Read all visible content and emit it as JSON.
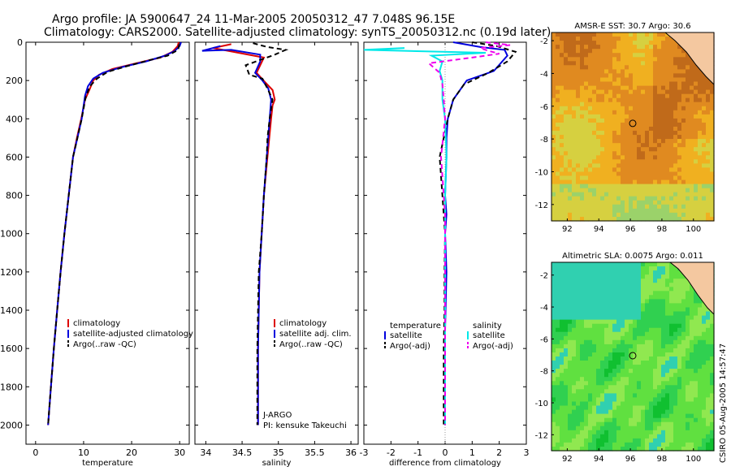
{
  "header": {
    "line1": "Argo profile: JA 5900647_24 11-Mar-2005 20050312_47 7.048S 96.15E",
    "line2": "Climatology: CARS2000. Satellite-adjusted climatology: synTS_20050312.nc (0.19d later)"
  },
  "side_label": "CSIRO 05-Aug-2005 14:57:47",
  "colors": {
    "climatology": "#dd0000",
    "satellite": "#0000dd",
    "argo": "#000000",
    "salinity_sat": "#00e8e8",
    "salinity_argo": "#ee00ee"
  },
  "chart_data": [
    {
      "id": "temperature",
      "type": "line",
      "xlabel": "temperature",
      "ylabel": "",
      "xlim": [
        -2,
        32
      ],
      "ylim": [
        2100,
        0
      ],
      "xticks": [
        0,
        10,
        20,
        30
      ],
      "xtick_labels": [
        "0",
        "10",
        "20",
        "30"
      ],
      "yticks": [
        0,
        200,
        400,
        600,
        800,
        1000,
        1200,
        1400,
        1600,
        1800,
        2000
      ],
      "ytick_labels": [
        "0",
        "200",
        "400",
        "600",
        "800",
        "1000",
        "1200",
        "1400",
        "1600",
        "1800",
        "2000"
      ],
      "legend": {
        "position": "lower-right",
        "entries": [
          {
            "label": "climatology",
            "color": "#dd0000",
            "dash": false
          },
          {
            "label": "satellite-adjusted climatology",
            "color": "#0000dd",
            "dash": false
          },
          {
            "label": "Argo(..raw -QC)",
            "color": "#000000",
            "dash": true
          }
        ]
      },
      "series": [
        {
          "key": "climatology",
          "color": "#dd0000",
          "dash": false,
          "points": [
            [
              29.8,
              0
            ],
            [
              29.6,
              20
            ],
            [
              28.5,
              50
            ],
            [
              26,
              80
            ],
            [
              21,
              110
            ],
            [
              16,
              140
            ],
            [
              13.2,
              170
            ],
            [
              12,
              200
            ],
            [
              11.2,
              250
            ],
            [
              10.3,
              300
            ],
            [
              9.5,
              400
            ],
            [
              8.6,
              500
            ],
            [
              7.8,
              600
            ],
            [
              6.9,
              800
            ],
            [
              6,
              1000
            ],
            [
              5.2,
              1200
            ],
            [
              4.5,
              1400
            ],
            [
              3.8,
              1600
            ],
            [
              3.2,
              1800
            ],
            [
              2.6,
              2000
            ]
          ]
        },
        {
          "key": "satellite",
          "color": "#0000dd",
          "dash": false,
          "points": [
            [
              30.3,
              0
            ],
            [
              30,
              20
            ],
            [
              29,
              45
            ],
            [
              27,
              70
            ],
            [
              23,
              100
            ],
            [
              18,
              130
            ],
            [
              14,
              160
            ],
            [
              12,
              190
            ],
            [
              10.9,
              230
            ],
            [
              10.3,
              280
            ],
            [
              9.6,
              400
            ],
            [
              8.7,
              500
            ],
            [
              7.8,
              600
            ],
            [
              6.9,
              800
            ],
            [
              6,
              1000
            ],
            [
              5.2,
              1200
            ],
            [
              4.5,
              1400
            ],
            [
              3.8,
              1600
            ],
            [
              3.2,
              1800
            ],
            [
              2.6,
              2000
            ]
          ]
        },
        {
          "key": "argo",
          "color": "#000000",
          "dash": true,
          "points": [
            [
              29.9,
              10
            ],
            [
              29.7,
              40
            ],
            [
              27.5,
              70
            ],
            [
              23.5,
              95
            ],
            [
              19,
              125
            ],
            [
              15,
              155
            ],
            [
              12.8,
              190
            ],
            [
              11.3,
              230
            ],
            [
              10.4,
              290
            ],
            [
              9.6,
              400
            ],
            [
              8.7,
              500
            ],
            [
              7.8,
              600
            ],
            [
              6.9,
              800
            ],
            [
              6,
              1000
            ],
            [
              5.2,
              1200
            ],
            [
              4.5,
              1400
            ],
            [
              3.8,
              1600
            ],
            [
              3.2,
              1800
            ],
            [
              2.6,
              2000
            ]
          ]
        }
      ]
    },
    {
      "id": "salinity",
      "type": "line",
      "xlabel": "salinity",
      "ylabel": "",
      "xlim": [
        33.85,
        36.1
      ],
      "ylim": [
        2100,
        0
      ],
      "xticks": [
        34,
        34.5,
        35,
        35.5,
        36
      ],
      "xtick_labels": [
        "34",
        "34.5",
        "35",
        "35.5",
        "36"
      ],
      "yticks": [
        0,
        200,
        400,
        600,
        800,
        1000,
        1200,
        1400,
        1600,
        1800,
        2000
      ],
      "legend": {
        "position": "lower-right",
        "entries": [
          {
            "label": "climatology",
            "color": "#dd0000",
            "dash": false
          },
          {
            "label": "satellite adj. clim.",
            "color": "#0000dd",
            "dash": false
          },
          {
            "label": "Argo(..raw -QC)",
            "color": "#000000",
            "dash": true
          }
        ]
      },
      "annotations": [
        "J-ARGO",
        "PI: kensuke Takeuchi"
      ],
      "series": [
        {
          "key": "climatology",
          "color": "#dd0000",
          "dash": false,
          "points": [
            [
              34.35,
              10
            ],
            [
              34.1,
              30
            ],
            [
              34.45,
              55
            ],
            [
              34.8,
              80
            ],
            [
              34.75,
              120
            ],
            [
              34.7,
              160
            ],
            [
              34.82,
              210
            ],
            [
              34.92,
              250
            ],
            [
              34.95,
              300
            ],
            [
              34.92,
              330
            ],
            [
              34.9,
              400
            ],
            [
              34.85,
              600
            ],
            [
              34.8,
              800
            ],
            [
              34.77,
              1000
            ],
            [
              34.74,
              1200
            ],
            [
              34.73,
              1400
            ],
            [
              34.72,
              1600
            ],
            [
              34.72,
              1800
            ],
            [
              34.72,
              2000
            ]
          ]
        },
        {
          "key": "satellite",
          "color": "#0000dd",
          "dash": false,
          "points": [
            [
              34.2,
              20
            ],
            [
              33.95,
              45
            ],
            [
              34.35,
              40
            ],
            [
              34.75,
              65
            ],
            [
              34.75,
              100
            ],
            [
              34.68,
              160
            ],
            [
              34.78,
              200
            ],
            [
              34.86,
              240
            ],
            [
              34.9,
              300
            ],
            [
              34.88,
              400
            ],
            [
              34.84,
              600
            ],
            [
              34.8,
              800
            ],
            [
              34.77,
              1000
            ],
            [
              34.74,
              1200
            ],
            [
              34.73,
              1400
            ],
            [
              34.72,
              1600
            ],
            [
              34.72,
              1800
            ],
            [
              34.72,
              2000
            ]
          ]
        },
        {
          "key": "argo",
          "color": "#000000",
          "dash": true,
          "points": [
            [
              34.65,
              5
            ],
            [
              34.85,
              25
            ],
            [
              35.1,
              40
            ],
            [
              34.95,
              65
            ],
            [
              34.55,
              120
            ],
            [
              34.6,
              170
            ],
            [
              34.78,
              190
            ],
            [
              34.86,
              250
            ],
            [
              34.92,
              300
            ],
            [
              34.88,
              400
            ],
            [
              34.85,
              500
            ],
            [
              34.84,
              600
            ],
            [
              34.8,
              800
            ],
            [
              34.77,
              1000
            ],
            [
              34.73,
              1200
            ],
            [
              34.72,
              1400
            ],
            [
              34.71,
              1600
            ],
            [
              34.71,
              1800
            ],
            [
              34.71,
              2000
            ]
          ]
        }
      ]
    },
    {
      "id": "difference",
      "type": "line",
      "xlabel": "difference from climatology",
      "ylabel": "",
      "xlim": [
        -3,
        3
      ],
      "ylim": [
        2100,
        0
      ],
      "xticks": [
        -3,
        -2,
        -1,
        0,
        1,
        2,
        3
      ],
      "xtick_labels": [
        "-3",
        "-2",
        "-1",
        "0",
        "1",
        "2",
        "3"
      ],
      "yticks": [
        0,
        200,
        400,
        600,
        800,
        1000,
        1200,
        1400,
        1600,
        1800,
        2000
      ],
      "legend": {
        "position": "lower-center",
        "headers": [
          "temperature",
          "salinity"
        ],
        "entries": [
          {
            "label": "satellite",
            "color": "#0000dd",
            "dash": false,
            "group": "temperature"
          },
          {
            "label": "Argo(-adj)",
            "color": "#000000",
            "dash": true,
            "group": "temperature"
          },
          {
            "label": "satellite",
            "color": "#00e8e8",
            "dash": false,
            "group": "salinity"
          },
          {
            "label": "Argo(-adj)",
            "color": "#ee00ee",
            "dash": true,
            "group": "salinity"
          }
        ]
      },
      "series": [
        {
          "key": "temp_satellite",
          "color": "#0000dd",
          "dash": false,
          "points": [
            [
              0.3,
              0
            ],
            [
              1.3,
              25
            ],
            [
              2.2,
              40
            ],
            [
              2.3,
              70
            ],
            [
              1.8,
              150
            ],
            [
              0.8,
              200
            ],
            [
              0.3,
              300
            ],
            [
              0.1,
              400
            ],
            [
              0.05,
              500
            ],
            [
              0.05,
              600
            ],
            [
              0,
              800
            ],
            [
              0.05,
              900
            ],
            [
              0,
              1000
            ],
            [
              0.05,
              1200
            ],
            [
              0,
              1500
            ],
            [
              0,
              2000
            ]
          ]
        },
        {
          "key": "temp_argo",
          "color": "#000000",
          "dash": true,
          "points": [
            [
              1.0,
              0
            ],
            [
              1.9,
              20
            ],
            [
              2.6,
              50
            ],
            [
              2.3,
              100
            ],
            [
              1.6,
              160
            ],
            [
              0.7,
              220
            ],
            [
              0.3,
              300
            ],
            [
              0.1,
              400
            ],
            [
              -0.05,
              500
            ],
            [
              -0.2,
              600
            ],
            [
              -0.1,
              800
            ],
            [
              -0.05,
              900
            ],
            [
              0,
              1000
            ],
            [
              -0.02,
              1200
            ],
            [
              -0.02,
              1400
            ],
            [
              -0.05,
              1600
            ],
            [
              -0.05,
              1800
            ],
            [
              -0.05,
              2000
            ]
          ]
        },
        {
          "key": "sal_satellite",
          "color": "#00e8e8",
          "dash": false,
          "points": [
            [
              -1.5,
              30
            ],
            [
              -3,
              40
            ],
            [
              1.5,
              55
            ],
            [
              -0.5,
              70
            ],
            [
              -0.1,
              100
            ],
            [
              -0.2,
              150
            ],
            [
              -0.1,
              200
            ],
            [
              -0.1,
              300
            ],
            [
              0,
              400
            ],
            [
              0.05,
              600
            ],
            [
              0,
              800
            ],
            [
              0,
              1000
            ],
            [
              0,
              1200
            ],
            [
              0,
              1500
            ],
            [
              0,
              2000
            ]
          ]
        },
        {
          "key": "sal_argo",
          "color": "#ee00ee",
          "dash": true,
          "points": [
            [
              1.5,
              0
            ],
            [
              2.4,
              15
            ],
            [
              1.3,
              30
            ],
            [
              1.6,
              45
            ],
            [
              2.0,
              60
            ],
            [
              1.0,
              80
            ],
            [
              -0.6,
              110
            ],
            [
              -0.2,
              160
            ],
            [
              -0.1,
              220
            ],
            [
              -0.05,
              300
            ],
            [
              0,
              400
            ],
            [
              -0.15,
              600
            ],
            [
              -0.1,
              700
            ],
            [
              -0.05,
              800
            ],
            [
              0,
              900
            ],
            [
              0,
              1000
            ],
            [
              0,
              1200
            ],
            [
              0,
              1400
            ],
            [
              0,
              2000
            ]
          ]
        }
      ]
    },
    {
      "id": "sst_map",
      "type": "heatmap",
      "title": "AMSR-E SST: 30.7 Argo: 30.6",
      "xlim": [
        91,
        101.3
      ],
      "ylim": [
        -13,
        -1.5
      ],
      "xticks": [
        92,
        94,
        96,
        98,
        100
      ],
      "xtick_labels": [
        "92",
        "94",
        "96",
        "98",
        "100"
      ],
      "yticks": [
        -2,
        -4,
        -6,
        -8,
        -10,
        -12
      ],
      "ytick_labels": [
        "-2",
        "-4",
        "-6",
        "-8",
        "-10",
        "-12"
      ],
      "argo_position": [
        96.15,
        -7.048
      ],
      "colormap": [
        "#9bd26a",
        "#d6d040",
        "#f0b020",
        "#e08a20",
        "#c06a1a"
      ]
    },
    {
      "id": "sla_map",
      "type": "heatmap",
      "title": "Altimetric SLA: 0.0075 Argo: 0.011",
      "xlim": [
        91,
        101.3
      ],
      "ylim": [
        -13,
        -1.2
      ],
      "xticks": [
        92,
        94,
        96,
        98,
        100
      ],
      "xtick_labels": [
        "92",
        "94",
        "96",
        "98",
        "100"
      ],
      "yticks": [
        -2,
        -4,
        -6,
        -8,
        -10,
        -12
      ],
      "ytick_labels": [
        "-2",
        "-4",
        "-6",
        "-8",
        "-10",
        "-12"
      ],
      "argo_position": [
        96.15,
        -7.048
      ],
      "colormap": [
        "#10c030",
        "#30d050",
        "#60e040",
        "#90e850",
        "#30d0b0"
      ]
    }
  ]
}
